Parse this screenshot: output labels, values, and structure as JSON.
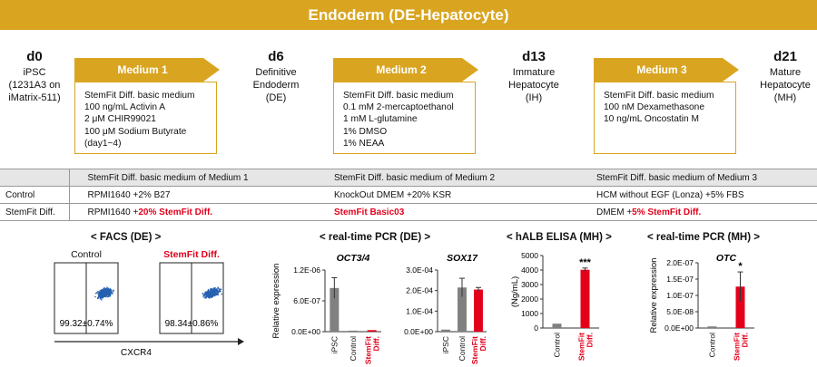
{
  "banner": {
    "title": "Endoderm (DE-Hepatocyte)"
  },
  "colors": {
    "accent": "#d9a521",
    "red": "#e3001b",
    "gray": "#808080",
    "facs_blue": "#2660b0"
  },
  "stages": [
    {
      "day": "d0",
      "lines": [
        "iPSC",
        "(1231A3 on",
        "iMatrix-511)"
      ]
    },
    {
      "day": "d6",
      "lines": [
        "Definitive",
        "Endoderm",
        "(DE)"
      ]
    },
    {
      "day": "d13",
      "lines": [
        "Immature",
        "Hepatocyte",
        "(IH)"
      ]
    },
    {
      "day": "d21",
      "lines": [
        "Mature",
        "Hepatocyte",
        "(MH)"
      ]
    }
  ],
  "media": [
    {
      "label": "Medium 1",
      "lines": [
        "StemFit Diff. basic medium",
        "100 ng/mL Activin A",
        "2 μM CHIR99021",
        "100 μM Sodium Butyrate",
        "(day1~4)"
      ]
    },
    {
      "label": "Medium 2",
      "lines": [
        "StemFit Diff. basic medium",
        "0.1 mM 2-mercaptoethanol",
        "1 mM L-glutamine",
        "1% DMSO",
        "1% NEAA"
      ]
    },
    {
      "label": "Medium 3",
      "lines": [
        "StemFit Diff. basic medium",
        "100 nM Dexamethasone",
        "10 ng/mL Oncostatin M"
      ]
    }
  ],
  "table": {
    "header": [
      "",
      "StemFit Diff. basic medium of Medium 1",
      "StemFit Diff. basic medium of Medium 2",
      "StemFit Diff. basic medium of Medium 3"
    ],
    "control": {
      "label": "Control",
      "m1": "RPMI1640 +2% B27",
      "m2": "KnockOut DMEM +20% KSR",
      "m3": "HCM without EGF (Lonza) +5% FBS"
    },
    "stemfit": {
      "label": "StemFit Diff.",
      "m1_a": "RPMI1640 +",
      "m1_b": "20% StemFit Diff.",
      "m2": "StemFit Basic03",
      "m3_a": "DMEM +",
      "m3_b": "5% StemFit Diff."
    }
  },
  "panels": {
    "facs_title": "< FACS (DE) >",
    "pcr_de_title": "< real-time PCR (DE) >",
    "elisa_title": "< hALB ELISA (MH) >",
    "pcr_mh_title": "< real-time PCR (MH) >"
  },
  "facs": {
    "plots": [
      {
        "label": "Control",
        "value": "99.32±0.74%",
        "center": 0.79
      },
      {
        "label": "StemFit Diff.",
        "value": "98.34±0.86%",
        "center": 0.81
      }
    ],
    "xlabel": "CXCR4"
  },
  "chart_data": [
    {
      "type": "bar",
      "title": "OCT3/4",
      "ylabel": "Relative expression",
      "categories": [
        "iPSC",
        "Control",
        "StemFit Diff."
      ],
      "values": [
        8.5e-07,
        2e-08,
        3e-08
      ],
      "errors": [
        2e-07,
        0,
        0
      ],
      "colors": [
        "#808080",
        "#808080",
        "#e3001b"
      ],
      "ylim": [
        0,
        1.2e-06
      ],
      "yticks": [
        0,
        6e-07,
        1.2e-06
      ],
      "ytick_labels": [
        "0.0E+00",
        "6.0E-07",
        "1.2E-06"
      ],
      "annotations": []
    },
    {
      "type": "bar",
      "title": "SOX17",
      "ylabel": "",
      "categories": [
        "iPSC",
        "Control",
        "StemFit Diff."
      ],
      "values": [
        1e-05,
        0.000215,
        0.000205
      ],
      "errors": [
        0,
        4.5e-05,
        1e-05
      ],
      "colors": [
        "#808080",
        "#808080",
        "#e3001b"
      ],
      "ylim": [
        0,
        0.0003
      ],
      "yticks": [
        0,
        0.0001,
        0.0002,
        0.0003
      ],
      "ytick_labels": [
        "0.0E+00",
        "1.0E-04",
        "2.0E-04",
        "3.0E-04"
      ],
      "annotations": []
    },
    {
      "type": "bar",
      "title": "",
      "ylabel": "(Ng/mL)",
      "categories": [
        "Control",
        "StemFit Diff."
      ],
      "values": [
        300,
        4020
      ],
      "errors": [
        0,
        120
      ],
      "colors": [
        "#808080",
        "#e3001b"
      ],
      "ylim": [
        0,
        5000
      ],
      "yticks": [
        0,
        1000,
        2000,
        3000,
        4000,
        5000
      ],
      "ytick_labels": [
        "0",
        "1000",
        "2000",
        "3000",
        "4000",
        "5000"
      ],
      "annotations": [
        "",
        "***"
      ]
    },
    {
      "type": "bar",
      "title": "OTC",
      "ylabel": "Relative expression",
      "categories": [
        "Control",
        "StemFit Diff."
      ],
      "values": [
        5e-09,
        1.27e-07
      ],
      "errors": [
        0,
        4.5e-08
      ],
      "colors": [
        "#808080",
        "#e3001b"
      ],
      "ylim": [
        0,
        2e-07
      ],
      "yticks": [
        0,
        5e-08,
        1e-07,
        1.5e-07,
        2e-07
      ],
      "ytick_labels": [
        "0.0E+00",
        "5.0E-08",
        "1.0E-07",
        "1.5E-07",
        "2.0E-07"
      ],
      "annotations": [
        "",
        "*"
      ]
    }
  ]
}
